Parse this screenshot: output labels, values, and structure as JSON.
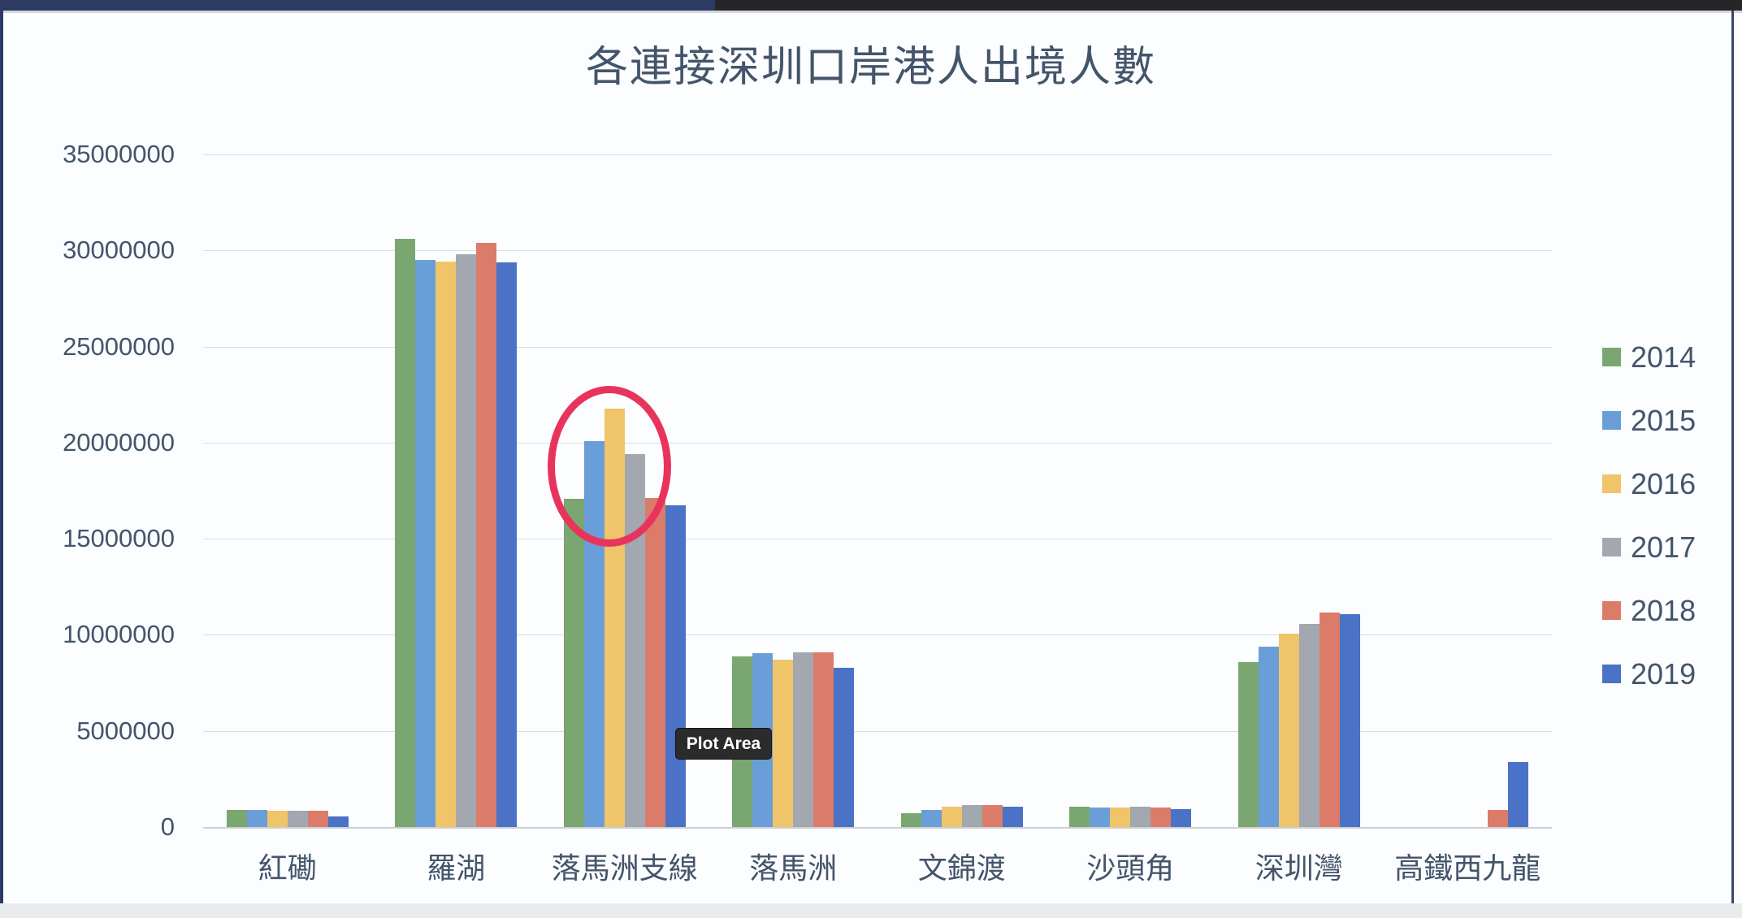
{
  "window": {
    "topbar_navy_color": "#2D3A64",
    "topbar_black_color": "#262628",
    "side_border_color": "#3A4766",
    "bottom_strip_color": "#E9EBEC",
    "background_color": "#FBFDFE"
  },
  "chart": {
    "title": "各連接深圳口岸港人出境人數",
    "text_color": "#44546A",
    "gridline_color": "#DBDDDF",
    "axis_line_color": "#CDD0D3"
  },
  "tooltip": {
    "label": "Plot Area",
    "background": "#2B2B2B",
    "text_color": "#FFFFFF"
  },
  "annotation": {
    "shape": "ellipse",
    "color": "#E8345C"
  },
  "chart_data": {
    "type": "bar",
    "title": "各連接深圳口岸港人出境人數",
    "categories": [
      "紅磡",
      "羅湖",
      "落馬洲支線",
      "落馬洲",
      "文錦渡",
      "沙頭角",
      "深圳灣",
      "高鐵西九龍"
    ],
    "series": [
      {
        "name": "2014",
        "color": "#7AA671",
        "values": [
          880000,
          30620000,
          17070000,
          8870000,
          700000,
          1050000,
          8580000,
          0
        ]
      },
      {
        "name": "2015",
        "color": "#6A9ED8",
        "values": [
          870000,
          29490000,
          20070000,
          9040000,
          900000,
          1020000,
          9390000,
          0
        ]
      },
      {
        "name": "2016",
        "color": "#F0C468",
        "values": [
          830000,
          29400000,
          21790000,
          8720000,
          1050000,
          1000000,
          10050000,
          0
        ]
      },
      {
        "name": "2017",
        "color": "#A3A7B0",
        "values": [
          830000,
          29800000,
          19400000,
          9100000,
          1150000,
          1070000,
          10560000,
          0
        ]
      },
      {
        "name": "2018",
        "color": "#DB7C6A",
        "values": [
          840000,
          30390000,
          17140000,
          9080000,
          1150000,
          1000000,
          11160000,
          900000
        ]
      },
      {
        "name": "2019",
        "color": "#4A72C6",
        "values": [
          550000,
          29380000,
          16730000,
          8270000,
          1050000,
          920000,
          11080000,
          3370000
        ]
      }
    ],
    "xlabel": "",
    "ylabel": "",
    "ylim": [
      0,
      35000000
    ],
    "ytick_step": 5000000,
    "grid": true,
    "legend_position": "right",
    "annotation_target_category": "落馬洲支線"
  }
}
